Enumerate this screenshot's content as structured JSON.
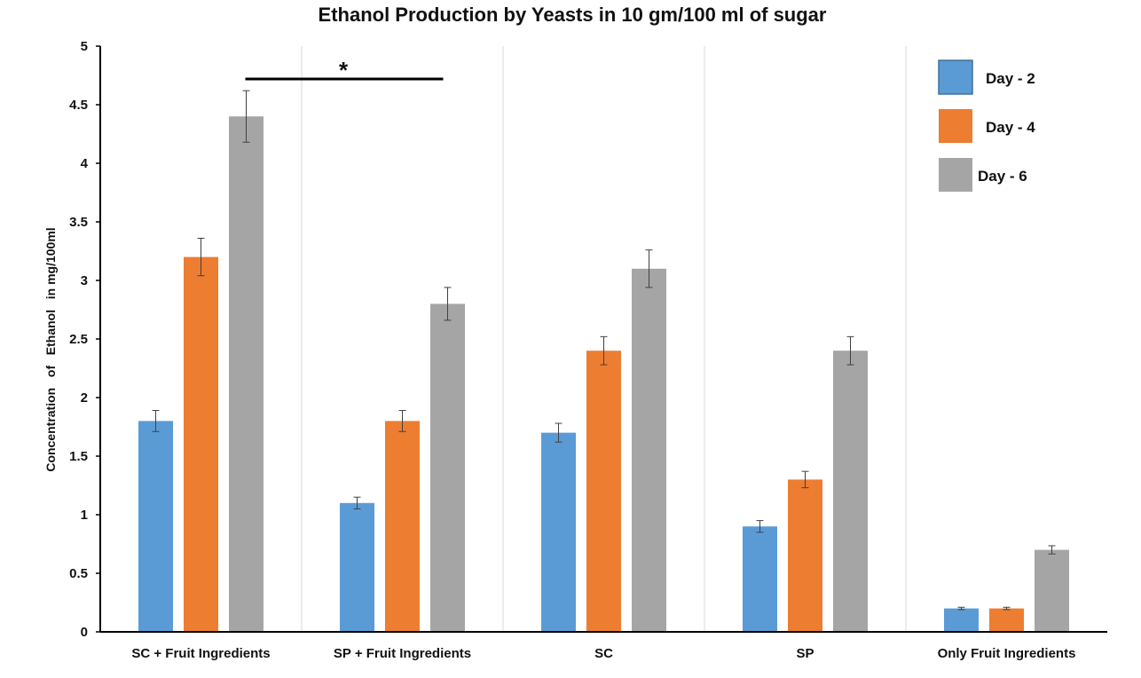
{
  "chart_data": {
    "type": "bar",
    "title": "Ethanol Production by Yeasts in 10 gm/100 ml of sugar",
    "xlabel": "",
    "ylabel": "Concentration   of   Ethanol   in mg/100ml",
    "ylim": [
      0,
      5
    ],
    "yticks": [
      "0",
      "0.5",
      "1",
      "1.5",
      "2",
      "2.5",
      "3",
      "3.5",
      "4",
      "4.5",
      "5"
    ],
    "categories": [
      "SC + Fruit Ingredients",
      "SP + Fruit Ingredients",
      "SC",
      "SP",
      "Only Fruit Ingredients"
    ],
    "series": [
      {
        "name": "Day - 2",
        "color": "#5B9BD5",
        "values": [
          1.8,
          1.1,
          1.7,
          0.9,
          0.2
        ],
        "errors": [
          0.09,
          0.05,
          0.08,
          0.05,
          0.01
        ]
      },
      {
        "name": "Day - 4",
        "color": "#ED7D31",
        "values": [
          3.2,
          1.8,
          2.4,
          1.3,
          0.2
        ],
        "errors": [
          0.16,
          0.09,
          0.12,
          0.07,
          0.01
        ]
      },
      {
        "name": "Day - 6",
        "color": "#A5A5A5",
        "values": [
          4.4,
          2.8,
          3.1,
          2.4,
          0.7
        ],
        "errors": [
          0.22,
          0.14,
          0.16,
          0.12,
          0.035
        ]
      }
    ],
    "annotation": {
      "text": "*",
      "from_category": 0,
      "to_category": 1
    },
    "grid": "vertical category separators",
    "legend_position": "top-right"
  }
}
